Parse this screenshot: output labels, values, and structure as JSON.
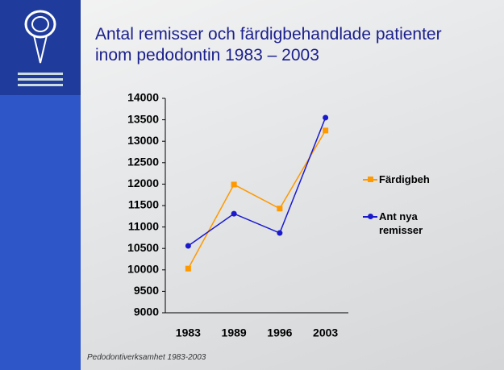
{
  "title": "Antal remisser och färdigbehandlade patienter inom pedodontin 1983 – 2003",
  "footer": "Pedodontiverksamhet 1983-2003",
  "chart_data": {
    "type": "line",
    "categories": [
      "1983",
      "1989",
      "1996",
      "2003"
    ],
    "series": [
      {
        "name": "Färdigbeh",
        "color": "#ff9900",
        "marker": "square",
        "values": [
          10030,
          11990,
          11430,
          13250
        ]
      },
      {
        "name": "Ant nya remisser",
        "color": "#1a1acc",
        "marker": "circle",
        "values": [
          10560,
          11310,
          10860,
          13550
        ]
      }
    ],
    "ylim": [
      9000,
      14000
    ],
    "yticks": [
      9000,
      9500,
      10000,
      10500,
      11000,
      11500,
      12000,
      12500,
      13000,
      13500,
      14000
    ],
    "grid": false
  }
}
